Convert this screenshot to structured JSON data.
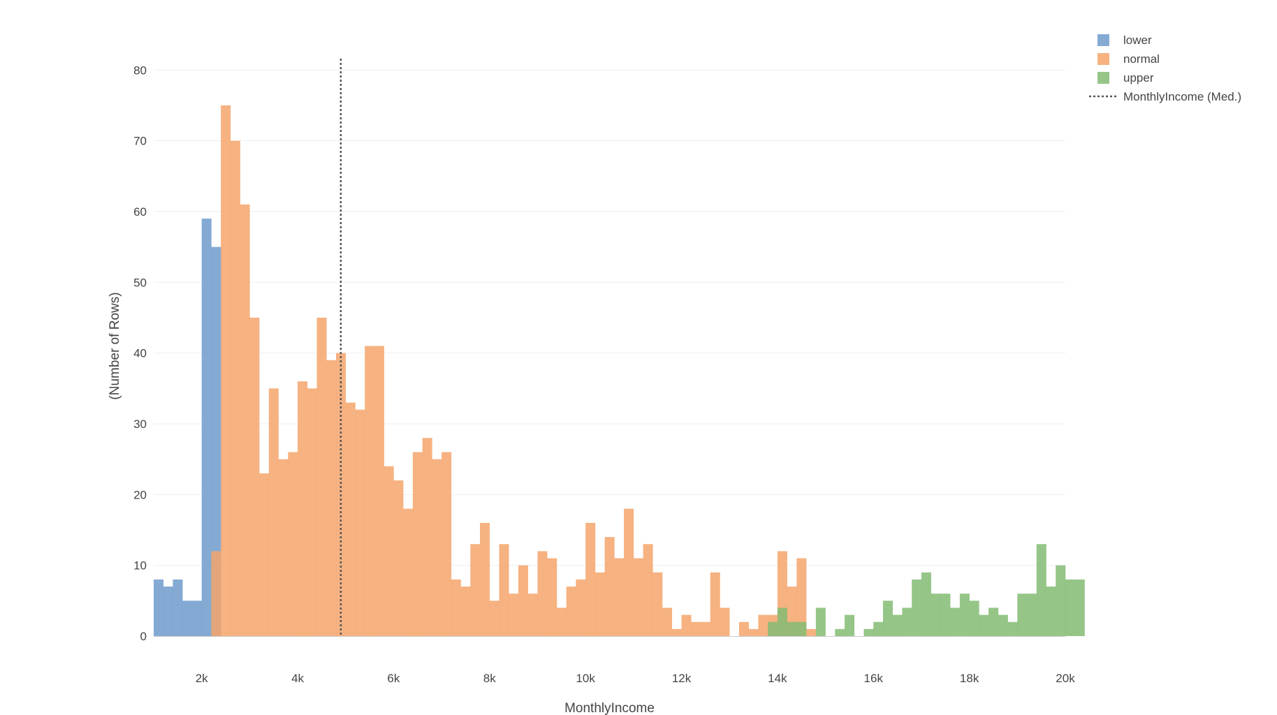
{
  "chart_data": {
    "type": "bar",
    "subtype": "overlaid-histogram",
    "xlabel": "MonthlyIncome",
    "ylabel": "(Number of Rows)",
    "xlim": [
      1000,
      20000
    ],
    "ylim": [
      0,
      82
    ],
    "bin_width": 200,
    "x_ticks": [
      2000,
      4000,
      6000,
      8000,
      10000,
      12000,
      14000,
      16000,
      18000,
      20000
    ],
    "x_tick_labels": [
      "2k",
      "4k",
      "6k",
      "8k",
      "10k",
      "12k",
      "14k",
      "16k",
      "18k",
      "20k"
    ],
    "y_ticks": [
      0,
      10,
      20,
      30,
      40,
      50,
      60,
      70,
      80
    ],
    "y_tick_labels": [
      "0",
      "10",
      "20",
      "30",
      "40",
      "50",
      "60",
      "70",
      "80"
    ],
    "grid": "horizontal",
    "legend_position": "top-right",
    "series": [
      {
        "name": "lower",
        "color": "#6f9bcd",
        "x_start": 1000,
        "values": [
          8,
          7,
          8,
          5,
          5,
          59,
          55
        ]
      },
      {
        "name": "normal",
        "color": "#f4a56b",
        "x_start": 2200,
        "values": [
          12,
          75,
          70,
          61,
          45,
          23,
          35,
          25,
          26,
          36,
          35,
          45,
          39,
          40,
          33,
          32,
          41,
          41,
          24,
          22,
          18,
          26,
          28,
          25,
          26,
          8,
          7,
          13,
          16,
          5,
          13,
          6,
          10,
          6,
          12,
          11,
          4,
          7,
          8,
          16,
          9,
          14,
          11,
          18,
          11,
          13,
          9,
          4,
          1,
          3,
          2,
          2,
          9,
          4,
          0,
          2,
          1,
          3,
          3,
          12,
          7,
          11,
          1
        ]
      },
      {
        "name": "upper",
        "color": "#84bb73",
        "x_start": 13800,
        "values": [
          2,
          4,
          2,
          2,
          0,
          4,
          0,
          1,
          3,
          0,
          1,
          2,
          5,
          3,
          4,
          8,
          9,
          6,
          6,
          4,
          6,
          5,
          3,
          4,
          3,
          2,
          6,
          6,
          13,
          7,
          10,
          8,
          8
        ]
      }
    ],
    "median_line": {
      "name": "MonthlyIncome (Med.)",
      "x": 4900,
      "color": "#555555",
      "style": "dotted"
    }
  }
}
